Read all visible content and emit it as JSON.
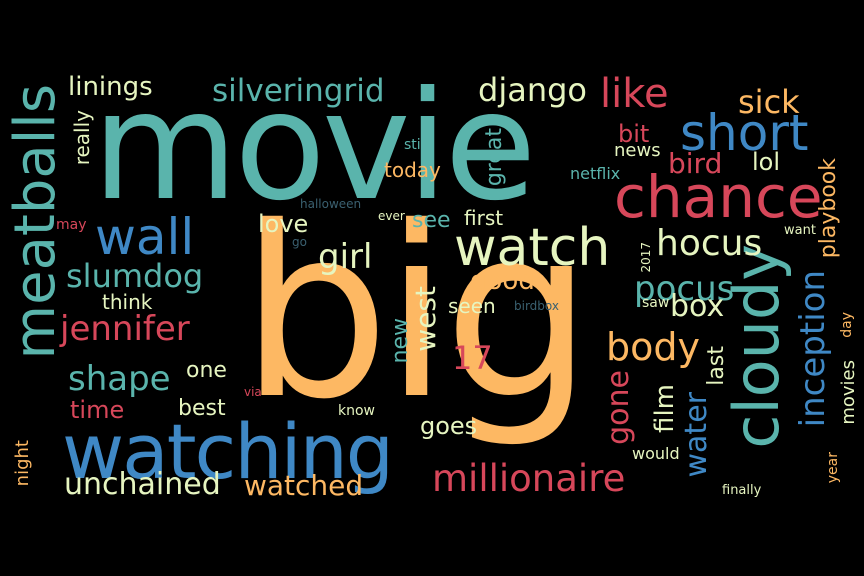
{
  "palette": {
    "background": "#000000",
    "teal": "#5ab4ac",
    "blue": "#3f88c5",
    "orange": "#fdb863",
    "red": "#d7475a",
    "cream": "#e6f5c0"
  },
  "words": {
    "big": "big",
    "movie": "movie",
    "watching": "watching",
    "meatballs": "meatballs",
    "cloudy": "cloudy",
    "watch": "watch",
    "chance": "chance",
    "short": "short",
    "wall": "wall",
    "silveringrid": "silveringrid",
    "django": "django",
    "millionaire": "millionaire",
    "jennifer": "jennifer",
    "slumdog": "slumdog",
    "hocus": "hocus",
    "inception": "inception",
    "water": "water",
    "body": "body",
    "unchained": "unchained",
    "watched": "watched",
    "shape": "shape",
    "girl": "girl",
    "pocus": "pocus",
    "like": "like",
    "sick": "sick",
    "playbook": "playbook",
    "linings": "linings",
    "bird": "bird",
    "lol": "lol",
    "bit": "bit",
    "news": "news",
    "netflix": "netflix",
    "great": "great",
    "today": "today",
    "still": "still",
    "love": "love",
    "see": "see",
    "first": "first",
    "good": "good",
    "box": "box",
    "west": "west",
    "new": "new",
    "seen": "seen",
    "film": "film",
    "gone": "gone",
    "last": "last",
    "saw": "saw",
    "one": "one",
    "time": "time",
    "best": "best",
    "think": "think",
    "goes": "goes",
    "really": "really",
    "night": "night",
    "movies": "movies",
    "year": "year",
    "would": "would",
    "finally": "finally",
    "know": "know",
    "day": "day",
    "via": "via",
    "ever": "ever",
    "n17": "17",
    "n2017": "2017",
    "want": "want",
    "may": "may",
    "halloween": "halloween",
    "birdbox": "birdbox",
    "go": "go"
  }
}
